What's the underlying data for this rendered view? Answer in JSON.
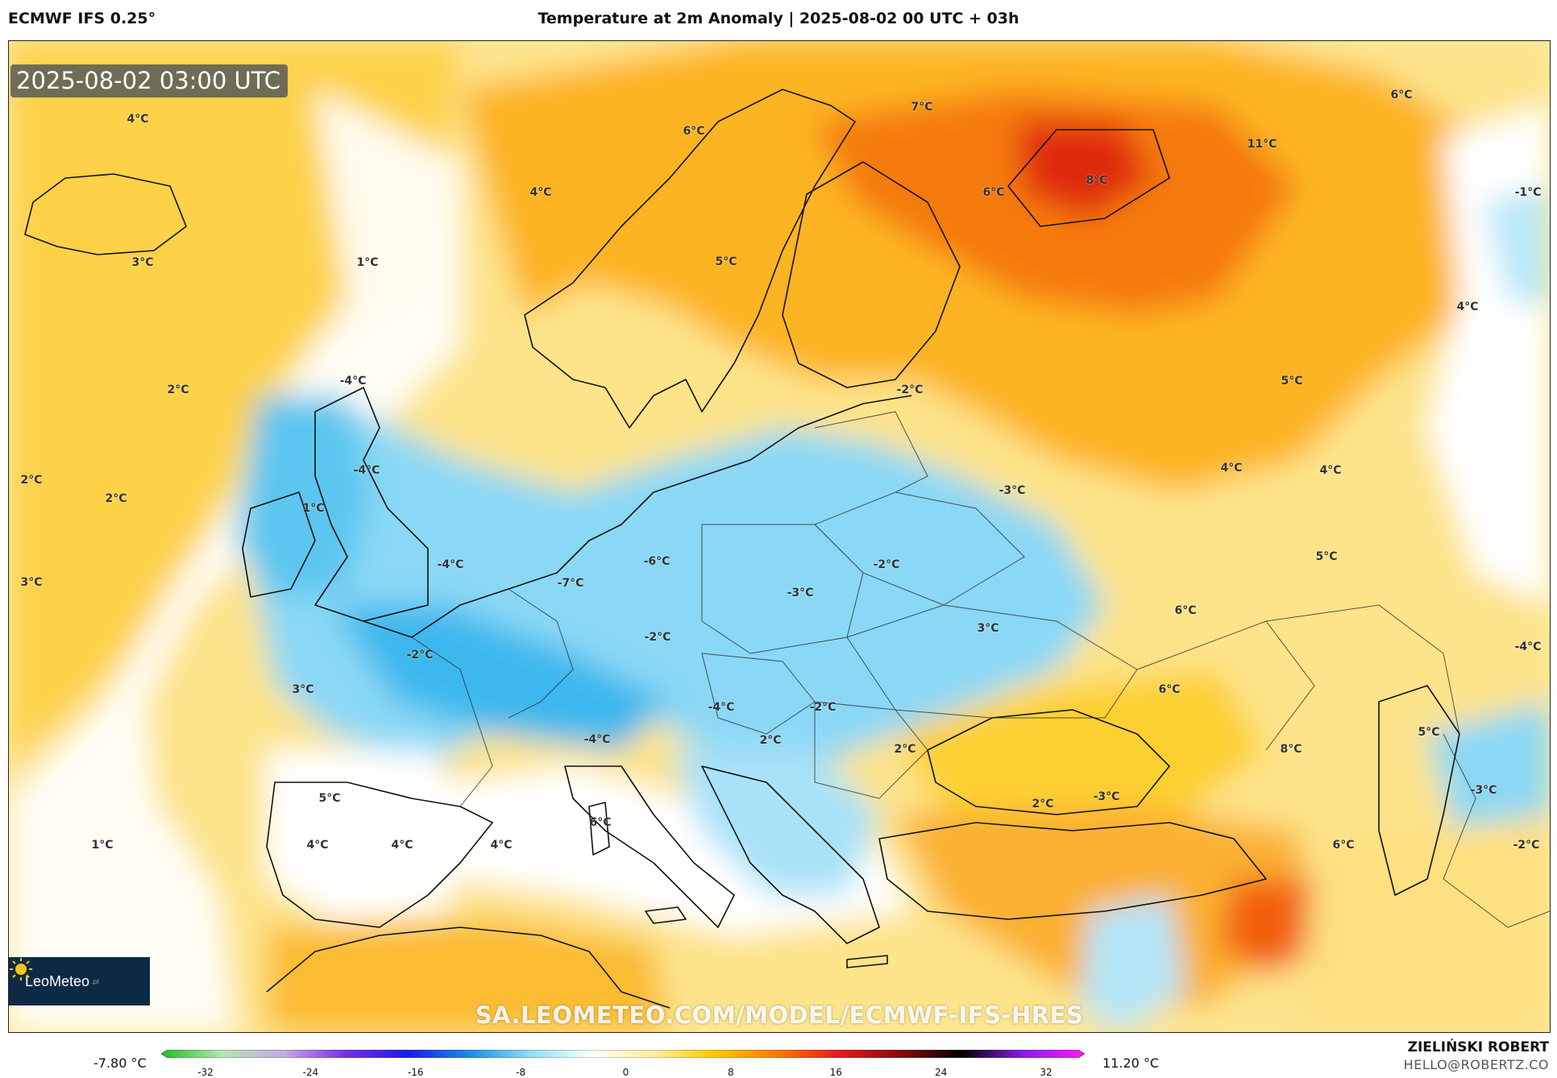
{
  "header": {
    "model": "ECMWF IFS 0.25°",
    "title": "Temperature at 2m Anomaly | 2025-08-02 00 UTC + 03h"
  },
  "map": {
    "timestamp": "2025-08-02 03:00 UTC",
    "watermark_url": "SA.LEOMETEO.COM/MODEL/ECMWF-IFS-HRES",
    "logo": {
      "brand": "LeoMeteo",
      "suffix": ".pl"
    },
    "labels": [
      {
        "text": "4°C"
      },
      {
        "text": "4°C"
      },
      {
        "text": "3°C"
      },
      {
        "text": "1°C"
      },
      {
        "text": "2°C"
      },
      {
        "text": "2°C"
      },
      {
        "text": "2°C"
      },
      {
        "text": "1°C"
      },
      {
        "text": "3°C"
      },
      {
        "text": "6°C"
      },
      {
        "text": "7°C"
      },
      {
        "text": "5°C"
      },
      {
        "text": "6°C"
      },
      {
        "text": "8°C"
      },
      {
        "text": "11°C"
      },
      {
        "text": "6°C"
      },
      {
        "text": "-1°C"
      },
      {
        "text": "4°C"
      },
      {
        "text": "5°C"
      },
      {
        "text": "-4°C"
      },
      {
        "text": "-4°C"
      },
      {
        "text": "-2°C"
      },
      {
        "text": "4°C"
      },
      {
        "text": "4°C"
      },
      {
        "text": "-3°C"
      },
      {
        "text": "-4°C"
      },
      {
        "text": "-7°C"
      },
      {
        "text": "-6°C"
      },
      {
        "text": "5°C"
      },
      {
        "text": "-2°C"
      },
      {
        "text": "-3°C"
      },
      {
        "text": "6°C"
      },
      {
        "text": "3°C"
      },
      {
        "text": "-4°C"
      },
      {
        "text": "-2°C"
      },
      {
        "text": "-2°C"
      },
      {
        "text": "3°C"
      },
      {
        "text": "-4°C"
      },
      {
        "text": "6°C"
      },
      {
        "text": "-2°C"
      },
      {
        "text": "2°C"
      },
      {
        "text": "-4°C"
      },
      {
        "text": "2°C"
      },
      {
        "text": "8°C"
      },
      {
        "text": "5°C"
      },
      {
        "text": "-3°C"
      },
      {
        "text": "5°C"
      },
      {
        "text": "2°C"
      },
      {
        "text": "-3°C"
      },
      {
        "text": "6°C"
      },
      {
        "text": "1°C"
      },
      {
        "text": "4°C"
      },
      {
        "text": "4°C"
      },
      {
        "text": "4°C"
      },
      {
        "text": "6°C"
      },
      {
        "text": "-2°C"
      }
    ]
  },
  "colorbar": {
    "min_label": "-7.80 °C",
    "max_label": "11.20 °C",
    "ticks": [
      "-32",
      "-24",
      "-16",
      "-8",
      "0",
      "8",
      "16",
      "24",
      "32"
    ],
    "stops": [
      "#1fbf1f",
      "#b4e6b4",
      "#c8a8e6",
      "#7a2ee6",
      "#1a1ae6",
      "#1a8ce6",
      "#8ee0f5",
      "#ffffff",
      "#fff09a",
      "#ffc800",
      "#ff7a00",
      "#e61a1a",
      "#8a0a0a",
      "#000000",
      "#8a1ae6",
      "#ff1aff"
    ]
  },
  "footer": {
    "author": "ZIELIŃSKI ROBERT",
    "email": "HELLO@ROBERTZ.CO"
  }
}
